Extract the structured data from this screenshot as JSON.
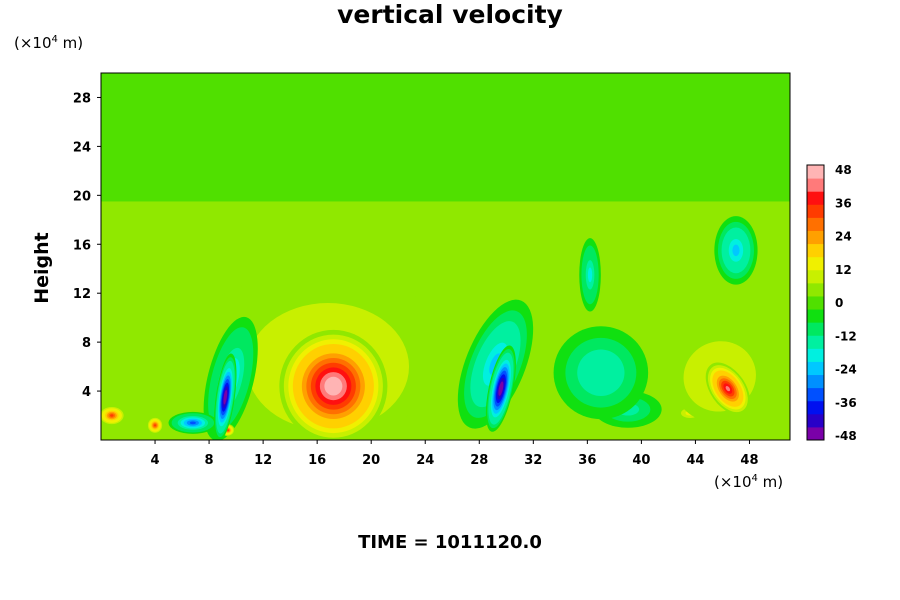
{
  "chart_data": {
    "type": "heatmap",
    "title": "vertical velocity",
    "ylabel": "Height",
    "x_unit_prefix": "(×10",
    "x_unit_exp": "4",
    "x_unit_suffix": " m)",
    "y_unit_prefix": "(×10",
    "y_unit_exp": "4",
    "y_unit_suffix": " m)",
    "footer": "TIME = 1011120.0",
    "xlim": [
      0,
      51
    ],
    "ylim": [
      0,
      30
    ],
    "x_ticks": [
      4,
      8,
      12,
      16,
      20,
      24,
      28,
      32,
      36,
      40,
      44,
      48
    ],
    "y_ticks": [
      4,
      8,
      12,
      16,
      20,
      24,
      28
    ],
    "colorbar": {
      "range": [
        -48,
        48
      ],
      "tick_labels": [
        48,
        36,
        24,
        12,
        0,
        -12,
        -24,
        -36,
        -48
      ],
      "colors": [
        "#7a00a8",
        "#2800c8",
        "#0010f0",
        "#0050ff",
        "#0090ff",
        "#00c8ff",
        "#00f0e0",
        "#00f0a0",
        "#00e860",
        "#10e010",
        "#50e000",
        "#90e800",
        "#c8f000",
        "#f0f000",
        "#ffd000",
        "#ffa000",
        "#ff7000",
        "#ff3c00",
        "#ff1010",
        "#ff7a7a",
        "#ffb4b4"
      ]
    },
    "features": [
      {
        "x": 17.2,
        "y": 4.4,
        "w": 48,
        "rx": 4.0,
        "ry": 4.6,
        "rot": 0
      },
      {
        "x": 16.8,
        "y": 6.0,
        "w": 18,
        "rx": 7.5,
        "ry": 6.5,
        "rot": 0
      },
      {
        "x": 16.0,
        "y": 8.5,
        "w": 5,
        "rx": 9.5,
        "ry": 5.0,
        "rot": 0
      },
      {
        "x": 46.4,
        "y": 4.2,
        "w": 40,
        "rx": 1.3,
        "ry": 2.4,
        "rot": -35
      },
      {
        "x": 45.8,
        "y": 5.2,
        "w": 14,
        "rx": 3.6,
        "ry": 3.8,
        "rot": -25
      },
      {
        "x": 43.6,
        "y": 2.2,
        "w": 12,
        "rx": 1.0,
        "ry": 0.6,
        "rot": 0
      },
      {
        "x": 44.6,
        "y": 7.0,
        "w": 5,
        "rx": 5.0,
        "ry": 4.0,
        "rot": 0
      },
      {
        "x": 9.2,
        "y": 3.5,
        "w": -48,
        "rx": 0.7,
        "ry": 3.6,
        "rot": 8
      },
      {
        "x": 9.6,
        "y": 5.0,
        "w": -22,
        "rx": 1.7,
        "ry": 5.2,
        "rot": 14
      },
      {
        "x": 6.8,
        "y": 1.4,
        "w": -30,
        "rx": 1.8,
        "ry": 0.9,
        "rot": 0
      },
      {
        "x": 29.6,
        "y": 4.2,
        "w": -48,
        "rx": 0.9,
        "ry": 3.6,
        "rot": 12
      },
      {
        "x": 29.2,
        "y": 6.2,
        "w": -24,
        "rx": 2.2,
        "ry": 5.6,
        "rot": 22
      },
      {
        "x": 37.0,
        "y": 5.5,
        "w": -16,
        "rx": 3.5,
        "ry": 3.8,
        "rot": 0
      },
      {
        "x": 36.2,
        "y": 13.5,
        "w": -18,
        "rx": 0.8,
        "ry": 3.0,
        "rot": 0
      },
      {
        "x": 47.0,
        "y": 15.5,
        "w": -24,
        "rx": 1.6,
        "ry": 2.8,
        "rot": 0
      },
      {
        "x": 39.0,
        "y": 2.5,
        "w": -12,
        "rx": 2.5,
        "ry": 1.5,
        "rot": 0
      },
      {
        "x": 0.8,
        "y": 2.0,
        "w": 30,
        "rx": 1.0,
        "ry": 0.8,
        "rot": 0
      },
      {
        "x": 4.0,
        "y": 1.2,
        "w": 30,
        "rx": 0.6,
        "ry": 0.7,
        "rot": 0
      },
      {
        "x": 9.4,
        "y": 0.8,
        "w": 30,
        "rx": 0.5,
        "ry": 0.5,
        "rot": 0
      },
      {
        "x": 2.5,
        "y": 10.0,
        "w": 6,
        "rx": 3.0,
        "ry": 6.0,
        "rot": 0
      },
      {
        "x": 25.0,
        "y": 5.0,
        "w": 4,
        "rx": 3.0,
        "ry": 4.0,
        "rot": 0
      },
      {
        "x": 42.0,
        "y": 12.0,
        "w": 5,
        "rx": 4.0,
        "ry": 4.0,
        "rot": 0
      }
    ]
  }
}
